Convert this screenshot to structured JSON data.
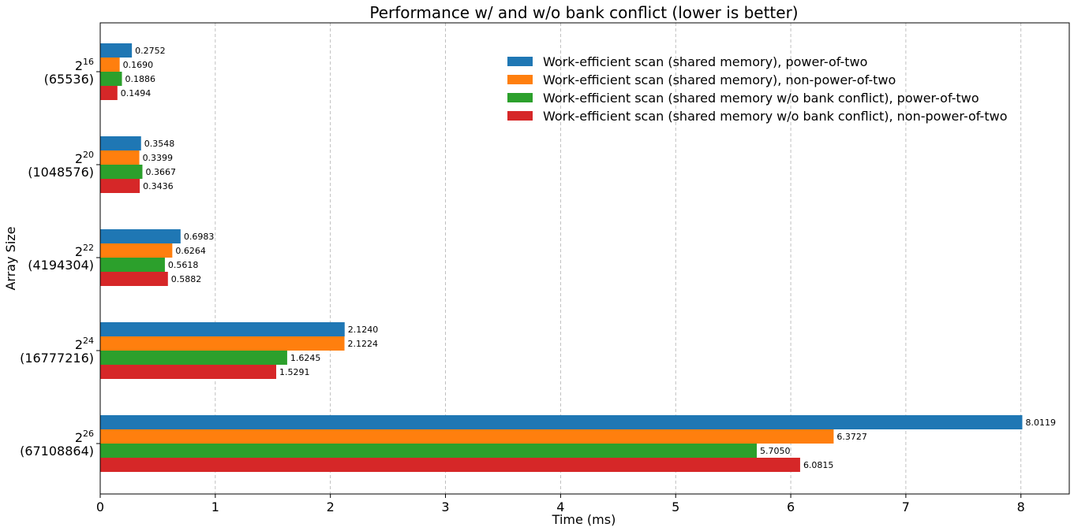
{
  "chart_data": {
    "type": "bar",
    "orientation": "horizontal",
    "title": "Performance w/ and w/o bank conflict (lower is better)",
    "xlabel": "Time (ms)",
    "ylabel": "Array Size",
    "xlim": [
      0,
      8.42
    ],
    "xticks": [
      "0",
      "1",
      "2",
      "3",
      "4",
      "5",
      "6",
      "7",
      "8"
    ],
    "grid": "x-dashed",
    "legend_position": "top-right",
    "categories": [
      {
        "base": "2",
        "exp": "16",
        "value": "(65536)"
      },
      {
        "base": "2",
        "exp": "20",
        "value": "(1048576)"
      },
      {
        "base": "2",
        "exp": "22",
        "value": "(4194304)"
      },
      {
        "base": "2",
        "exp": "24",
        "value": "(16777216)"
      },
      {
        "base": "2",
        "exp": "26",
        "value": "(67108864)"
      }
    ],
    "series": [
      {
        "name": "Work-efficient scan (shared memory), power-of-two",
        "color": "#1f77b4",
        "values": [
          0.2752,
          0.3548,
          0.6983,
          2.124,
          8.0119
        ],
        "labels": [
          "0.2752",
          "0.3548",
          "0.6983",
          "2.1240",
          "8.0119"
        ]
      },
      {
        "name": "Work-efficient scan (shared memory), non-power-of-two",
        "color": "#ff7f0e",
        "values": [
          0.169,
          0.3399,
          0.6264,
          2.1224,
          6.3727
        ],
        "labels": [
          "0.1690",
          "0.3399",
          "0.6264",
          "2.1224",
          "6.3727"
        ]
      },
      {
        "name": "Work-efficient scan (shared memory w/o bank conflict), power-of-two",
        "color": "#2ca02c",
        "values": [
          0.1886,
          0.3667,
          0.5618,
          1.6245,
          5.705
        ],
        "labels": [
          "0.1886",
          "0.3667",
          "0.5618",
          "1.6245",
          "5.7050"
        ]
      },
      {
        "name": "Work-efficient scan (shared memory w/o bank conflict), non-power-of-two",
        "color": "#d62728",
        "values": [
          0.1494,
          0.3436,
          0.5882,
          1.5291,
          6.0815
        ],
        "labels": [
          "0.1494",
          "0.3436",
          "0.5882",
          "1.5291",
          "6.0815"
        ]
      }
    ]
  }
}
